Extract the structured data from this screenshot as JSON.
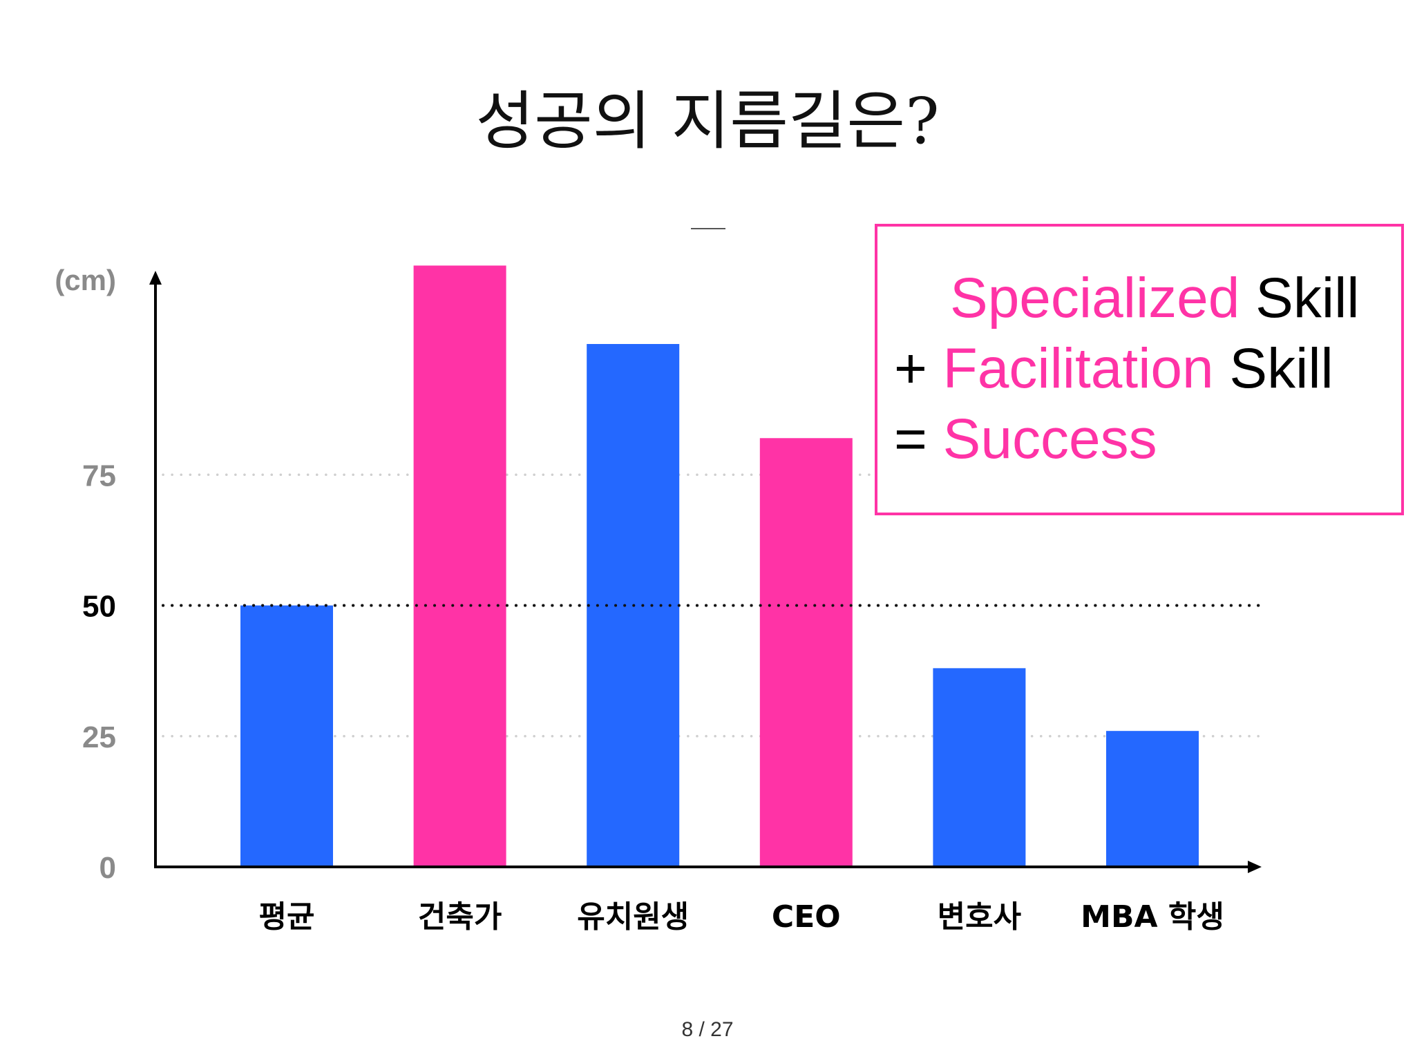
{
  "slide": {
    "title": "성공의 지름길은?",
    "page_indicator": "8 / 27"
  },
  "callout": {
    "line1": {
      "accent": "Specialized",
      "rest": " Skill"
    },
    "line2": {
      "prefix": "+ ",
      "accent": "Facilitation",
      "rest": " Skill"
    },
    "line3": {
      "prefix": "= ",
      "accent": "Success"
    },
    "accent_color": "#ff33a6",
    "border_color": "#ff33a6"
  },
  "chart_data": {
    "type": "bar",
    "title": "",
    "xlabel": "",
    "ylabel": "(cm)",
    "categories": [
      "평균",
      "건축가",
      "유치원생",
      "CEO",
      "변호사",
      "MBA 학생"
    ],
    "values": [
      50,
      115,
      100,
      82,
      38,
      26
    ],
    "bar_colors": [
      "#2468ff",
      "#ff33a6",
      "#2468ff",
      "#ff33a6",
      "#2468ff",
      "#2468ff"
    ],
    "y_ticks": [
      {
        "value": 0,
        "label": "0",
        "emphasis": false
      },
      {
        "value": 25,
        "label": "25",
        "emphasis": false
      },
      {
        "value": 50,
        "label": "50",
        "emphasis": true
      },
      {
        "value": 75,
        "label": "75",
        "emphasis": false
      }
    ],
    "ylim": [
      0,
      115
    ],
    "grid": "dotted at 25, 50, 75",
    "legend": "none"
  }
}
